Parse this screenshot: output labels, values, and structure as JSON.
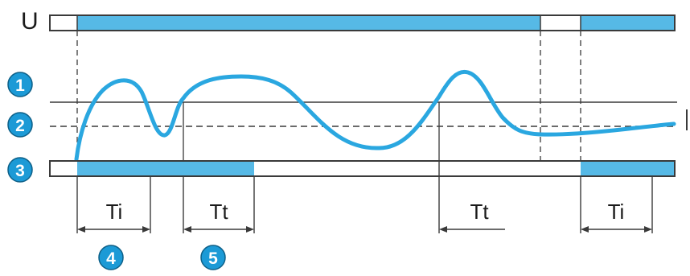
{
  "diagram": {
    "signal_label": "U",
    "markers": [
      "1",
      "2",
      "3",
      "4",
      "5"
    ],
    "intervals": {
      "ti_first": "Ti",
      "tt_first": "Tt",
      "tt_second": "Tt",
      "ti_second": "Ti"
    }
  },
  "colors": {
    "accent": "#56b9e6",
    "curve": "#2aa7e0",
    "badge": "#1c9ad6",
    "line": "#3a3a3a"
  }
}
